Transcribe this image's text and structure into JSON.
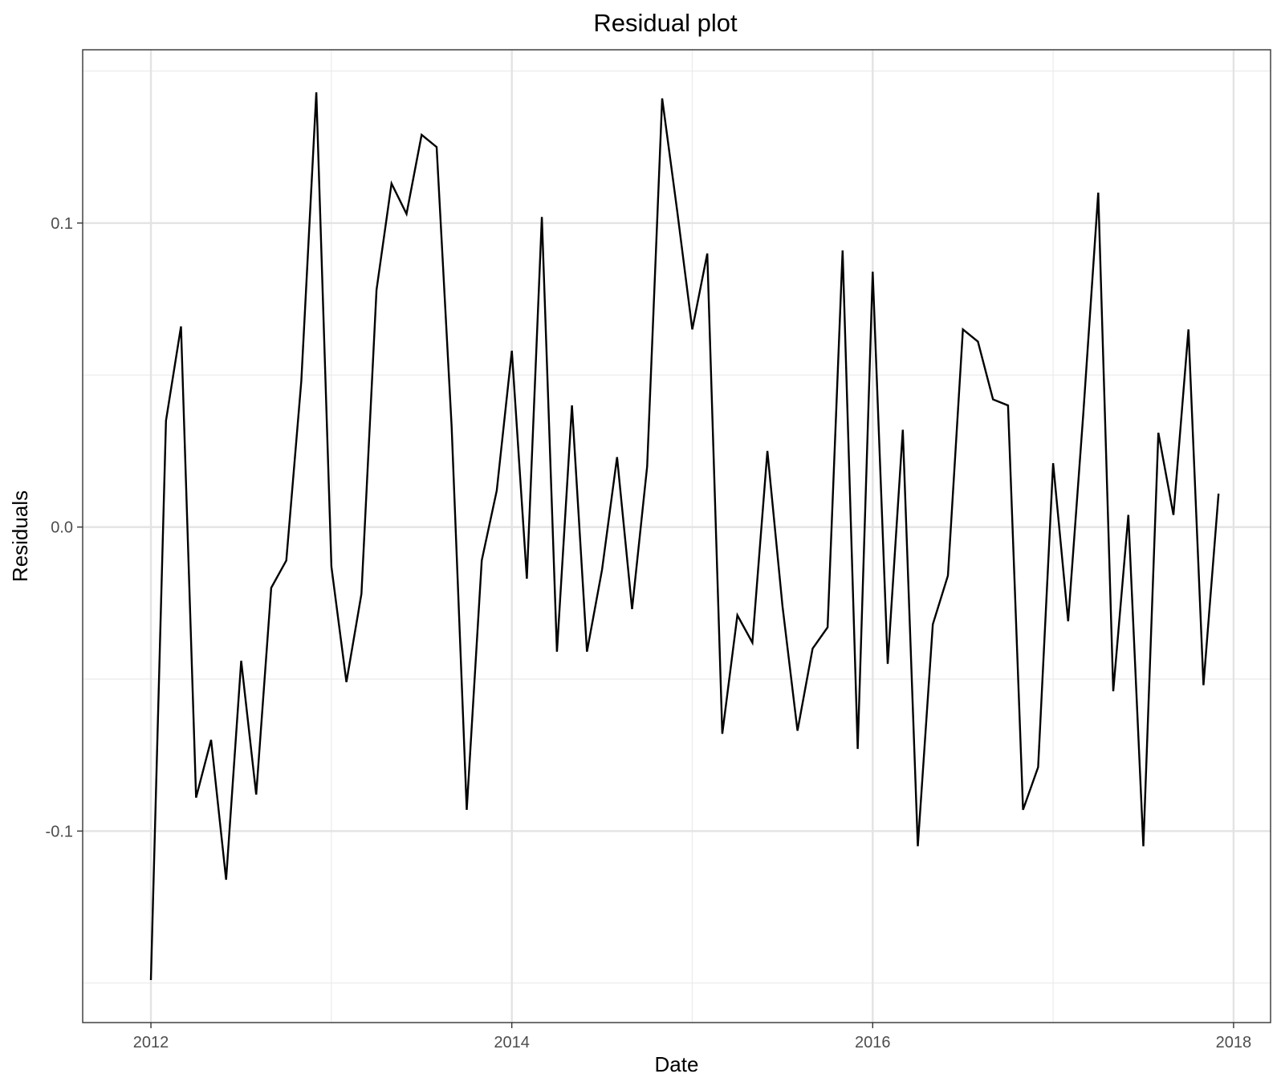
{
  "chart_data": {
    "type": "line",
    "title": "Residual plot",
    "xlabel": "Date",
    "ylabel": "Residuals",
    "x_tick_labels": [
      "2012",
      "2014",
      "2016",
      "2018"
    ],
    "y_tick_labels": [
      "-0.1",
      "0.0",
      "0.1"
    ],
    "y_ticks": [
      -0.1,
      0.0,
      0.1
    ],
    "x_ticks": [
      "2012-01-01",
      "2014-01-01",
      "2016-01-01",
      "2018-01-01"
    ],
    "x_minor_ticks": [
      "2013-01-01",
      "2015-01-01",
      "2017-01-01"
    ],
    "y_minor_ticks": [
      -0.15,
      -0.05,
      0.05,
      0.15
    ],
    "xlim": [
      "2011-08-15",
      "2018-03-15"
    ],
    "ylim": [
      -0.163,
      0.157
    ],
    "grid": true,
    "line_color": "#000000",
    "series": [
      {
        "x": [
          "2012-01",
          "2012-02",
          "2012-03",
          "2012-04",
          "2012-05",
          "2012-06",
          "2012-07",
          "2012-08",
          "2012-09",
          "2012-10",
          "2012-11",
          "2012-12",
          "2013-01",
          "2013-02",
          "2013-03",
          "2013-04",
          "2013-05",
          "2013-06",
          "2013-07",
          "2013-08",
          "2013-09",
          "2013-10",
          "2013-11",
          "2013-12",
          "2014-01",
          "2014-02",
          "2014-03",
          "2014-04",
          "2014-05",
          "2014-06",
          "2014-07",
          "2014-08",
          "2014-09",
          "2014-10",
          "2014-11",
          "2014-12",
          "2015-01",
          "2015-02",
          "2015-03",
          "2015-04",
          "2015-05",
          "2015-06",
          "2015-07",
          "2015-08",
          "2015-09",
          "2015-10",
          "2015-11",
          "2015-12",
          "2016-01",
          "2016-02",
          "2016-03",
          "2016-04",
          "2016-05",
          "2016-06",
          "2016-07",
          "2016-08",
          "2016-09",
          "2016-10",
          "2016-11",
          "2016-12",
          "2017-01",
          "2017-02",
          "2017-03",
          "2017-04",
          "2017-05",
          "2017-06",
          "2017-07",
          "2017-08",
          "2017-09",
          "2017-10",
          "2017-11",
          "2017-12"
        ],
        "values": [
          -0.149,
          0.035,
          0.066,
          -0.089,
          -0.07,
          -0.116,
          -0.044,
          -0.088,
          -0.02,
          -0.011,
          0.048,
          0.143,
          -0.013,
          -0.051,
          -0.022,
          0.078,
          0.113,
          0.103,
          0.129,
          0.125,
          0.033,
          -0.093,
          -0.011,
          0.012,
          0.058,
          -0.017,
          0.102,
          -0.041,
          0.04,
          -0.041,
          -0.014,
          0.023,
          -0.027,
          0.02,
          0.141,
          0.104,
          0.065,
          0.09,
          -0.068,
          -0.029,
          -0.038,
          0.025,
          -0.026,
          -0.067,
          -0.04,
          -0.033,
          0.091,
          -0.073,
          0.084,
          -0.045,
          0.032,
          -0.105,
          -0.032,
          -0.016,
          0.065,
          0.061,
          0.042,
          0.04,
          -0.093,
          -0.079,
          0.021,
          -0.031,
          0.037,
          0.11,
          -0.054,
          0.004,
          -0.105,
          0.031,
          0.004,
          0.065,
          -0.052,
          0.011
        ]
      }
    ]
  }
}
